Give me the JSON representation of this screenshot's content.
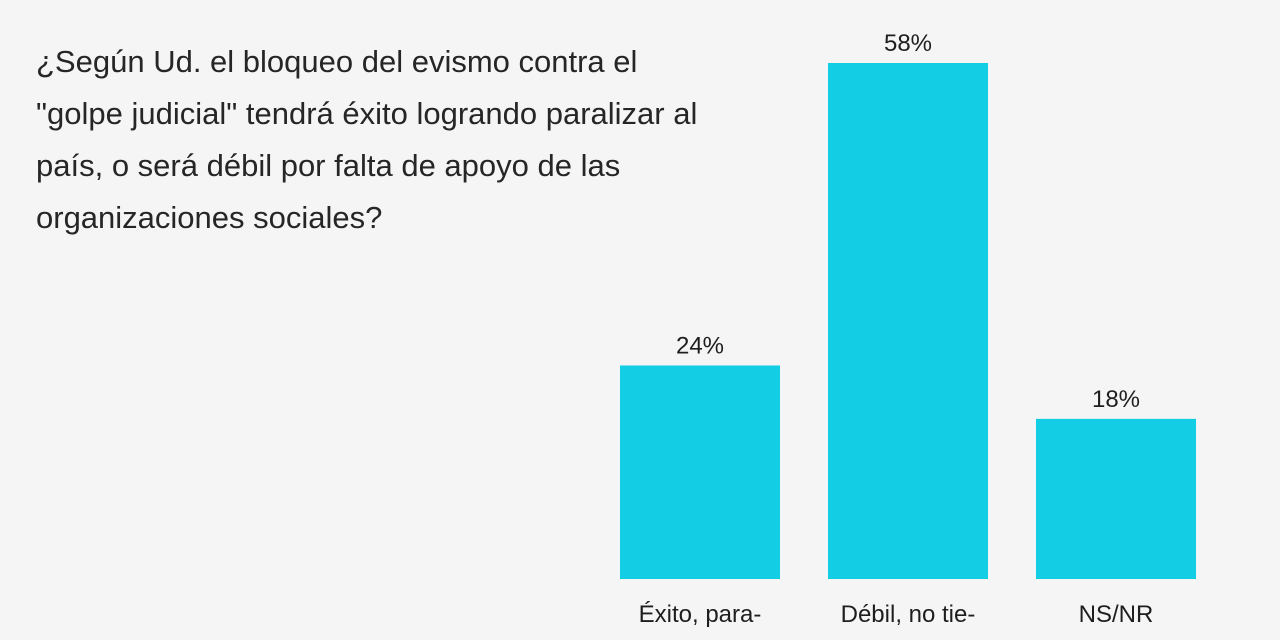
{
  "question": "¿Según Ud. el bloqueo del evismo contra el \"golpe judicial\" tendrá éxito logrando paralizar al país, o será débil por falta de apoyo de las organizaciones sociales?",
  "colors": {
    "bar": "#12cde3",
    "background": "#f5f5f5",
    "text": "#262626"
  },
  "chart_data": {
    "type": "bar",
    "title": "¿Según Ud. el bloqueo del evismo contra el \"golpe judicial\" tendrá éxito logrando paralizar al país, o será débil por falta de apoyo de las organizaciones sociales?",
    "categories": [
      "Éxito, para-",
      "Débil, no tie-",
      "NS/NR"
    ],
    "values": [
      24,
      58,
      18
    ],
    "value_labels": [
      "24%",
      "58%",
      "18%"
    ],
    "unit": "%",
    "xlabel": "",
    "ylabel": "",
    "ylim": [
      0,
      58
    ],
    "grid": false,
    "legend": "none"
  }
}
